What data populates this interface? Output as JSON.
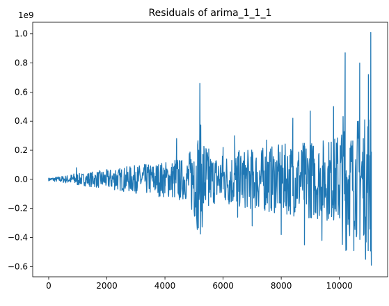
{
  "chart_data": {
    "type": "line",
    "title": "Residuals of arima_1_1_1",
    "xlabel": "",
    "ylabel": "",
    "y_offset_label": "1e9",
    "xlim": [
      -550,
      11660
    ],
    "ylim": [
      -0.67,
      1.08
    ],
    "x_ticks": [
      0,
      2000,
      4000,
      6000,
      8000,
      10000
    ],
    "x_tick_labels": [
      "0",
      "2000",
      "4000",
      "6000",
      "8000",
      "10000"
    ],
    "y_ticks": [
      -0.6,
      -0.4,
      -0.2,
      0.0,
      0.2,
      0.4,
      0.6,
      0.8,
      1.0
    ],
    "y_tick_labels": [
      "−0.6",
      "−0.4",
      "−0.2",
      "0.0",
      "0.2",
      "0.4",
      "0.6",
      "0.8",
      "1.0"
    ],
    "grid": false,
    "line_color": "#1f77b4",
    "series": [
      {
        "x": [
          0,
          500,
          950,
          1000,
          1500,
          2000,
          2300,
          2500,
          3000,
          3500,
          4000,
          4400,
          4500,
          5000,
          5200,
          5500,
          6000,
          6400,
          6500,
          7000,
          7500,
          8000,
          8400,
          8800,
          9000,
          9400,
          9800,
          10200,
          10500,
          10700,
          10900,
          11000,
          11080,
          11100
        ],
        "y": [
          0.01,
          0.005,
          0.08,
          -0.02,
          0.02,
          0.03,
          0.06,
          0.02,
          0.05,
          0.07,
          -0.05,
          0.28,
          -0.14,
          0.12,
          0.66,
          -0.18,
          0.22,
          0.3,
          -0.26,
          -0.32,
          0.27,
          -0.38,
          0.42,
          -0.45,
          0.47,
          -0.42,
          0.5,
          0.87,
          -0.49,
          0.8,
          -0.55,
          0.72,
          1.01,
          -0.59
        ]
      }
    ]
  }
}
